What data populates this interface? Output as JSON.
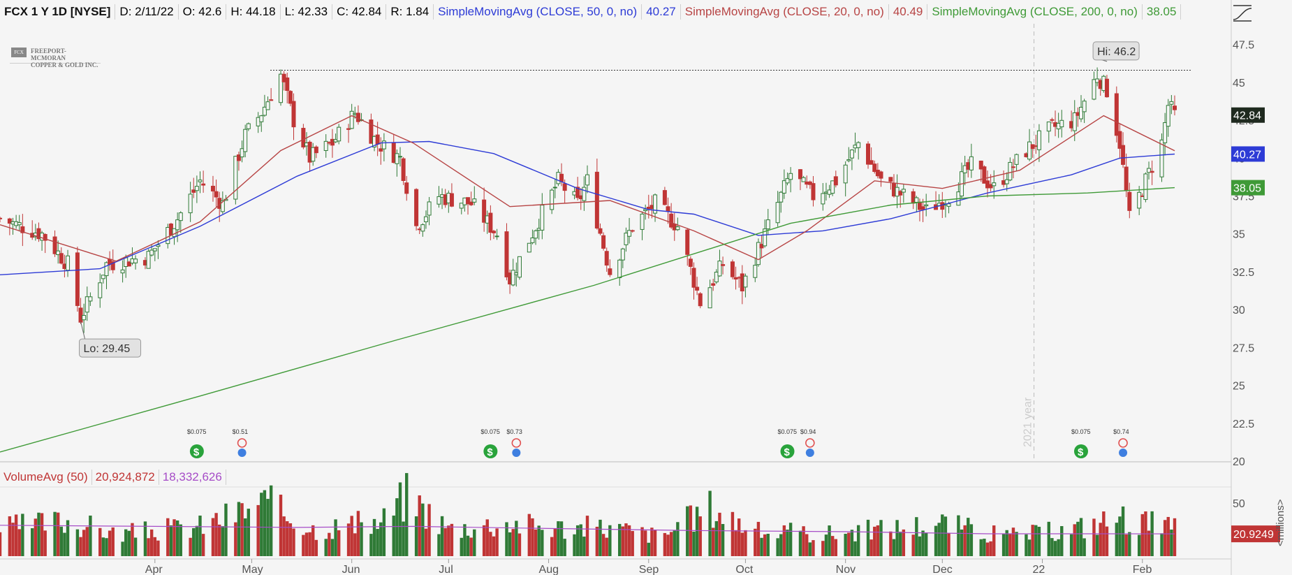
{
  "header": {
    "symbol": "FCX 1 Y 1D [NYSE]",
    "date": "D: 2/11/22",
    "open": "O: 42.6",
    "high": "H: 44.18",
    "low": "L: 42.33",
    "close": "C: 42.84",
    "range": "R: 1.84",
    "ma50_label": "SimpleMovingAvg (CLOSE, 50, 0, no)",
    "ma50_value": "40.27",
    "ma20_label": "SimpleMovingAvg (CLOSE, 20, 0, no)",
    "ma20_value": "40.49",
    "ma200_label": "SimpleMovingAvg (CLOSE, 200, 0, no)",
    "ma200_value": "38.05"
  },
  "logo": {
    "line1": "FREEPORT-MCMORAN",
    "line2": "COPPER & GOLD INC."
  },
  "volume_header": {
    "label": "VolumeAvg (50)",
    "value1": "20,924,872",
    "value2": "18,332,626"
  },
  "annotations": {
    "hi": "Hi: 46.2",
    "lo": "Lo: 29.45",
    "year_divider": "2021 year"
  },
  "dividends": [
    {
      "label": "$0.075",
      "date": "2021-04-14"
    },
    {
      "label": "$0.51",
      "date": "2021-04-28"
    },
    {
      "label": "$0.075",
      "date": "2021-07-14"
    },
    {
      "label": "$0.73",
      "date": "2021-07-22"
    },
    {
      "label": "$0.075",
      "date": "2021-10-14"
    },
    {
      "label": "$0.94",
      "date": "2021-10-21"
    },
    {
      "label": "$0.075",
      "date": "2022-01-13"
    },
    {
      "label": "$0.74",
      "date": "2022-01-26"
    }
  ],
  "colors": {
    "up": "#2f7a36",
    "down": "#c03535",
    "ma50": "#2d3bd6",
    "ma20": "#b74444",
    "ma200": "#3f9a37",
    "vol_avg": "#a64cc7",
    "hi_lo_line": "#333333",
    "bg": "#f5f5f5",
    "axis_text": "#555555",
    "div_icon": "#29a33b",
    "earn_icon": "#e05050",
    "earn_icon2": "#3f7fe0"
  },
  "chart_data": [
    {
      "type": "candlestick",
      "title": "FCX 1 Y 1D [NYSE]",
      "y_axis_side": "right",
      "ylim": [
        20,
        48.5
      ],
      "yticks": [
        20,
        22.5,
        25,
        27.5,
        30,
        32.5,
        35,
        37.5,
        40,
        42.5,
        45,
        47.5
      ],
      "xlim": [
        "2021-02-12",
        "2022-02-11"
      ],
      "x_tick_labels": [
        "Apr",
        "May",
        "Jun",
        "Jul",
        "Aug",
        "Sep",
        "Oct",
        "Nov",
        "Dec",
        "22",
        "Feb"
      ],
      "x_tick_dates": [
        "2021-04-01",
        "2021-05-01",
        "2021-06-01",
        "2021-07-01",
        "2021-08-01",
        "2021-09-01",
        "2021-10-01",
        "2021-11-01",
        "2021-12-01",
        "2022-01-01",
        "2022-02-01"
      ],
      "close_badges": [
        {
          "value": 42.84,
          "label": "42.84",
          "color": "#1f2a1f"
        },
        {
          "value": 40.27,
          "label": "40.27",
          "color": "#2d3bd6"
        },
        {
          "value": 38.05,
          "label": "38.05",
          "color": "#3f9a37"
        }
      ],
      "price_points": [
        [
          "2021-02-12",
          36.0
        ],
        [
          "2021-02-25",
          35.0
        ],
        [
          "2021-03-05",
          33.0
        ],
        [
          "2021-03-09",
          29.45
        ],
        [
          "2021-03-17",
          33.0
        ],
        [
          "2021-03-30",
          33.5
        ],
        [
          "2021-04-08",
          36.0
        ],
        [
          "2021-04-15",
          38.5
        ],
        [
          "2021-04-22",
          37.0
        ],
        [
          "2021-04-29",
          41.5
        ],
        [
          "2021-05-04",
          43.0
        ],
        [
          "2021-05-10",
          45.5
        ],
        [
          "2021-05-14",
          42.5
        ],
        [
          "2021-05-19",
          40.0
        ],
        [
          "2021-05-26",
          41.0
        ],
        [
          "2021-06-02",
          43.0
        ],
        [
          "2021-06-09",
          41.0
        ],
        [
          "2021-06-16",
          40.0
        ],
        [
          "2021-06-21",
          35.5
        ],
        [
          "2021-06-28",
          37.5
        ],
        [
          "2021-07-08",
          37.0
        ],
        [
          "2021-07-16",
          35.0
        ],
        [
          "2021-07-20",
          32.0
        ],
        [
          "2021-07-28",
          35.5
        ],
        [
          "2021-08-04",
          38.5
        ],
        [
          "2021-08-10",
          37.0
        ],
        [
          "2021-08-13",
          38.5
        ],
        [
          "2021-08-20",
          32.5
        ],
        [
          "2021-08-27",
          35.5
        ],
        [
          "2021-09-03",
          37.0
        ],
        [
          "2021-09-10",
          35.5
        ],
        [
          "2021-09-17",
          30.5
        ],
        [
          "2021-09-24",
          33.0
        ],
        [
          "2021-09-30",
          31.5
        ],
        [
          "2021-10-07",
          35.0
        ],
        [
          "2021-10-15",
          39.0
        ],
        [
          "2021-10-22",
          37.5
        ],
        [
          "2021-10-29",
          38.5
        ],
        [
          "2021-11-05",
          41.0
        ],
        [
          "2021-11-12",
          38.5
        ],
        [
          "2021-11-19",
          37.5
        ],
        [
          "2021-11-26",
          36.5
        ],
        [
          "2021-12-03",
          37.5
        ],
        [
          "2021-12-10",
          39.5
        ],
        [
          "2021-12-17",
          38.0
        ],
        [
          "2021-12-27",
          40.5
        ],
        [
          "2022-01-04",
          42.0
        ],
        [
          "2022-01-11",
          42.5
        ],
        [
          "2022-01-18",
          45.5
        ],
        [
          "2022-01-21",
          44.5
        ],
        [
          "2022-01-25",
          41.0
        ],
        [
          "2022-01-28",
          36.0
        ],
        [
          "2022-02-02",
          38.5
        ],
        [
          "2022-02-07",
          41.0
        ],
        [
          "2022-02-09",
          43.5
        ],
        [
          "2022-02-11",
          42.84
        ]
      ],
      "series": [
        {
          "name": "SimpleMovingAvg (CLOSE, 50, 0, no)",
          "color": "#2d3bd6",
          "points": [
            [
              "2021-02-12",
              32.3
            ],
            [
              "2021-03-15",
              32.7
            ],
            [
              "2021-04-15",
              35.5
            ],
            [
              "2021-05-15",
              38.8
            ],
            [
              "2021-06-10",
              41.0
            ],
            [
              "2021-06-25",
              41.1
            ],
            [
              "2021-07-15",
              40.3
            ],
            [
              "2021-08-10",
              38.0
            ],
            [
              "2021-09-01",
              36.6
            ],
            [
              "2021-09-15",
              36.3
            ],
            [
              "2021-10-05",
              34.9
            ],
            [
              "2021-10-25",
              35.2
            ],
            [
              "2021-11-15",
              36.0
            ],
            [
              "2021-12-15",
              37.7
            ],
            [
              "2022-01-10",
              38.9
            ],
            [
              "2022-01-25",
              40.0
            ],
            [
              "2022-02-11",
              40.27
            ]
          ]
        },
        {
          "name": "SimpleMovingAvg (CLOSE, 20, 0, no)",
          "color": "#b74444",
          "points": [
            [
              "2021-02-12",
              35.6
            ],
            [
              "2021-03-20",
              33.2
            ],
            [
              "2021-04-15",
              35.8
            ],
            [
              "2021-05-10",
              40.5
            ],
            [
              "2021-06-01",
              42.8
            ],
            [
              "2021-06-20",
              41.0
            ],
            [
              "2021-07-20",
              36.8
            ],
            [
              "2021-08-20",
              37.2
            ],
            [
              "2021-09-15",
              35.2
            ],
            [
              "2021-10-05",
              33.3
            ],
            [
              "2021-10-20",
              35.2
            ],
            [
              "2021-11-10",
              38.5
            ],
            [
              "2021-12-01",
              38.0
            ],
            [
              "2021-12-25",
              39.2
            ],
            [
              "2022-01-20",
              42.8
            ],
            [
              "2022-02-11",
              40.49
            ]
          ]
        },
        {
          "name": "SimpleMovingAvg (CLOSE, 200, 0, no)",
          "color": "#3f9a37",
          "points": [
            [
              "2021-02-12",
              20.6
            ],
            [
              "2021-04-15",
              24.3
            ],
            [
              "2021-06-15",
              28.0
            ],
            [
              "2021-08-15",
              31.6
            ],
            [
              "2021-10-15",
              35.7
            ],
            [
              "2021-11-15",
              36.9
            ],
            [
              "2021-12-15",
              37.5
            ],
            [
              "2022-01-15",
              37.7
            ],
            [
              "2022-02-11",
              38.05
            ]
          ]
        }
      ],
      "reference_lines": [
        {
          "type": "horizontal",
          "value": 45.8,
          "style": "dotted",
          "from": "2021-05-10"
        }
      ],
      "annotations": [
        {
          "text": "Hi: 46.2",
          "date": "2022-01-18",
          "value": 46.2
        },
        {
          "text": "Lo: 29.45",
          "date": "2021-03-09",
          "value": 29.45
        }
      ]
    },
    {
      "type": "bar",
      "title": "VolumeAvg (50)",
      "y_axis_side": "right",
      "yunit": "<millions>",
      "ylim": [
        0,
        65
      ],
      "yticks": [
        50
      ],
      "badge": {
        "value": 20.9249,
        "label": "20.9249",
        "color": "#c03535"
      },
      "volume_points": [
        [
          "2021-02-12",
          25
        ],
        [
          "2021-03-05",
          32
        ],
        [
          "2021-03-20",
          20
        ],
        [
          "2021-04-15",
          27
        ],
        [
          "2021-05-05",
          48
        ],
        [
          "2021-05-20",
          25
        ],
        [
          "2021-06-10",
          30
        ],
        [
          "2021-06-18",
          55
        ],
        [
          "2021-07-01",
          25
        ],
        [
          "2021-07-20",
          30
        ],
        [
          "2021-08-01",
          26
        ],
        [
          "2021-08-20",
          26
        ],
        [
          "2021-09-05",
          18
        ],
        [
          "2021-09-20",
          44
        ],
        [
          "2021-10-05",
          22
        ],
        [
          "2021-10-25",
          20
        ],
        [
          "2021-11-15",
          25
        ],
        [
          "2021-12-01",
          30
        ],
        [
          "2021-12-20",
          18
        ],
        [
          "2022-01-10",
          24
        ],
        [
          "2022-01-25",
          35
        ],
        [
          "2022-02-11",
          25
        ]
      ],
      "avg_points": [
        [
          "2021-02-12",
          29
        ],
        [
          "2021-04-01",
          28
        ],
        [
          "2021-05-15",
          27
        ],
        [
          "2021-06-20",
          28
        ],
        [
          "2021-08-01",
          26
        ],
        [
          "2021-09-15",
          24
        ],
        [
          "2021-11-01",
          23
        ],
        [
          "2021-12-15",
          21
        ],
        [
          "2022-01-15",
          21
        ],
        [
          "2022-02-11",
          20.9249
        ]
      ]
    }
  ]
}
